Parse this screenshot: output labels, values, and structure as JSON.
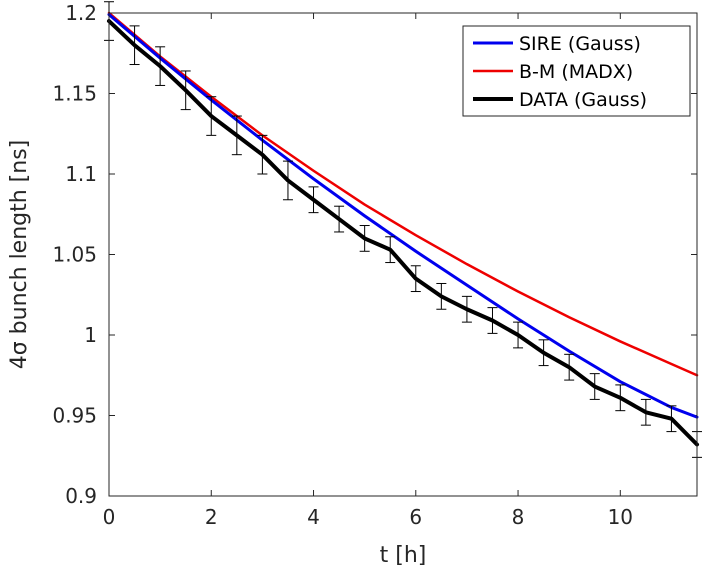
{
  "chart_data": {
    "type": "line",
    "xlabel": "t [h]",
    "ylabel": "4σ bunch length [ns]",
    "xlim": [
      0,
      11.5
    ],
    "ylim": [
      0.9,
      1.2
    ],
    "xticks": [
      0,
      2,
      4,
      6,
      8,
      10
    ],
    "xtick_labels": [
      "0",
      "2",
      "4",
      "6",
      "8",
      "10"
    ],
    "yticks": [
      0.9,
      0.95,
      1.0,
      1.05,
      1.1,
      1.15,
      1.2
    ],
    "ytick_labels": [
      "0.9",
      "0.95",
      "1",
      "1.05",
      "1.1",
      "1.15",
      "1.2"
    ],
    "legend_position": "top-right",
    "series": [
      {
        "name": "SIRE (Gauss)",
        "color": "#0000ee",
        "x": [
          0,
          1,
          2,
          3,
          4,
          5,
          6,
          7,
          8,
          9,
          10,
          11,
          11.5
        ],
        "y": [
          1.199,
          1.172,
          1.146,
          1.121,
          1.097,
          1.074,
          1.052,
          1.031,
          1.01,
          0.99,
          0.971,
          0.955,
          0.949
        ]
      },
      {
        "name": "B-M (MADX)",
        "color": "#ee0000",
        "x": [
          0,
          1,
          2,
          3,
          4,
          5,
          6,
          7,
          8,
          9,
          10,
          11,
          11.5
        ],
        "y": [
          1.2,
          1.173,
          1.148,
          1.124,
          1.102,
          1.081,
          1.062,
          1.044,
          1.027,
          1.011,
          0.996,
          0.982,
          0.975
        ]
      },
      {
        "name": "DATA (Gauss)",
        "color": "#000000",
        "x": [
          0,
          0.5,
          1,
          1.5,
          2,
          2.5,
          3,
          3.5,
          4,
          4.5,
          5,
          5.5,
          6,
          6.5,
          7,
          7.5,
          8,
          8.5,
          9,
          9.5,
          10,
          10.5,
          11,
          11.5
        ],
        "y": [
          1.195,
          1.18,
          1.167,
          1.152,
          1.136,
          1.124,
          1.112,
          1.096,
          1.084,
          1.072,
          1.06,
          1.053,
          1.035,
          1.024,
          1.016,
          1.009,
          1.0,
          0.989,
          0.98,
          0.968,
          0.961,
          0.952,
          0.948,
          0.932
        ],
        "error": [
          0.012,
          0.012,
          0.012,
          0.012,
          0.012,
          0.012,
          0.012,
          0.012,
          0.008,
          0.008,
          0.008,
          0.008,
          0.008,
          0.008,
          0.008,
          0.008,
          0.008,
          0.008,
          0.008,
          0.008,
          0.008,
          0.008,
          0.008,
          0.008
        ]
      }
    ]
  }
}
